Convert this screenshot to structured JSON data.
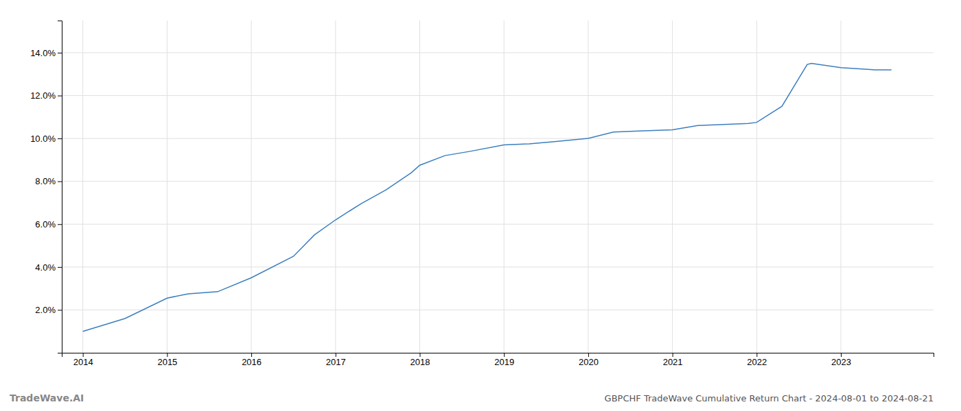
{
  "chart_data": {
    "type": "line",
    "title": "GBPCHF TradeWave Cumulative Return Chart - 2024-08-01 to 2024-08-21",
    "annotations": [
      "TradeWave.AI"
    ],
    "x": [
      2014.0,
      2014.5,
      2015.0,
      2015.25,
      2015.6,
      2016.0,
      2016.5,
      2016.75,
      2017.0,
      2017.3,
      2017.6,
      2017.9,
      2018.0,
      2018.3,
      2018.6,
      2019.0,
      2019.3,
      2019.6,
      2020.0,
      2020.3,
      2020.6,
      2021.0,
      2021.3,
      2021.6,
      2021.9,
      2022.0,
      2022.3,
      2022.6,
      2022.65,
      2023.0,
      2023.4,
      2023.6
    ],
    "values": [
      1.0,
      1.6,
      2.55,
      2.75,
      2.85,
      3.5,
      4.5,
      5.5,
      6.2,
      6.95,
      7.6,
      8.4,
      8.75,
      9.2,
      9.4,
      9.7,
      9.75,
      9.85,
      10.0,
      10.3,
      10.35,
      10.4,
      10.6,
      10.65,
      10.7,
      10.75,
      11.5,
      13.45,
      13.5,
      13.3,
      13.2,
      13.2
    ],
    "color": "#3a7ebf",
    "xlim": [
      2013.75,
      2024.1
    ],
    "ylim": [
      0.0,
      15.5
    ],
    "xticks": [
      2014,
      2015,
      2016,
      2017,
      2018,
      2019,
      2020,
      2021,
      2022,
      2023
    ],
    "yticks": [
      {
        "value": 2.0,
        "label": "2.0%"
      },
      {
        "value": 4.0,
        "label": "4.0%"
      },
      {
        "value": 6.0,
        "label": "6.0%"
      },
      {
        "value": 8.0,
        "label": "8.0%"
      },
      {
        "value": 10.0,
        "label": "10.0%"
      },
      {
        "value": 12.0,
        "label": "12.0%"
      },
      {
        "value": 14.0,
        "label": "14.0%"
      }
    ],
    "grid": true
  }
}
